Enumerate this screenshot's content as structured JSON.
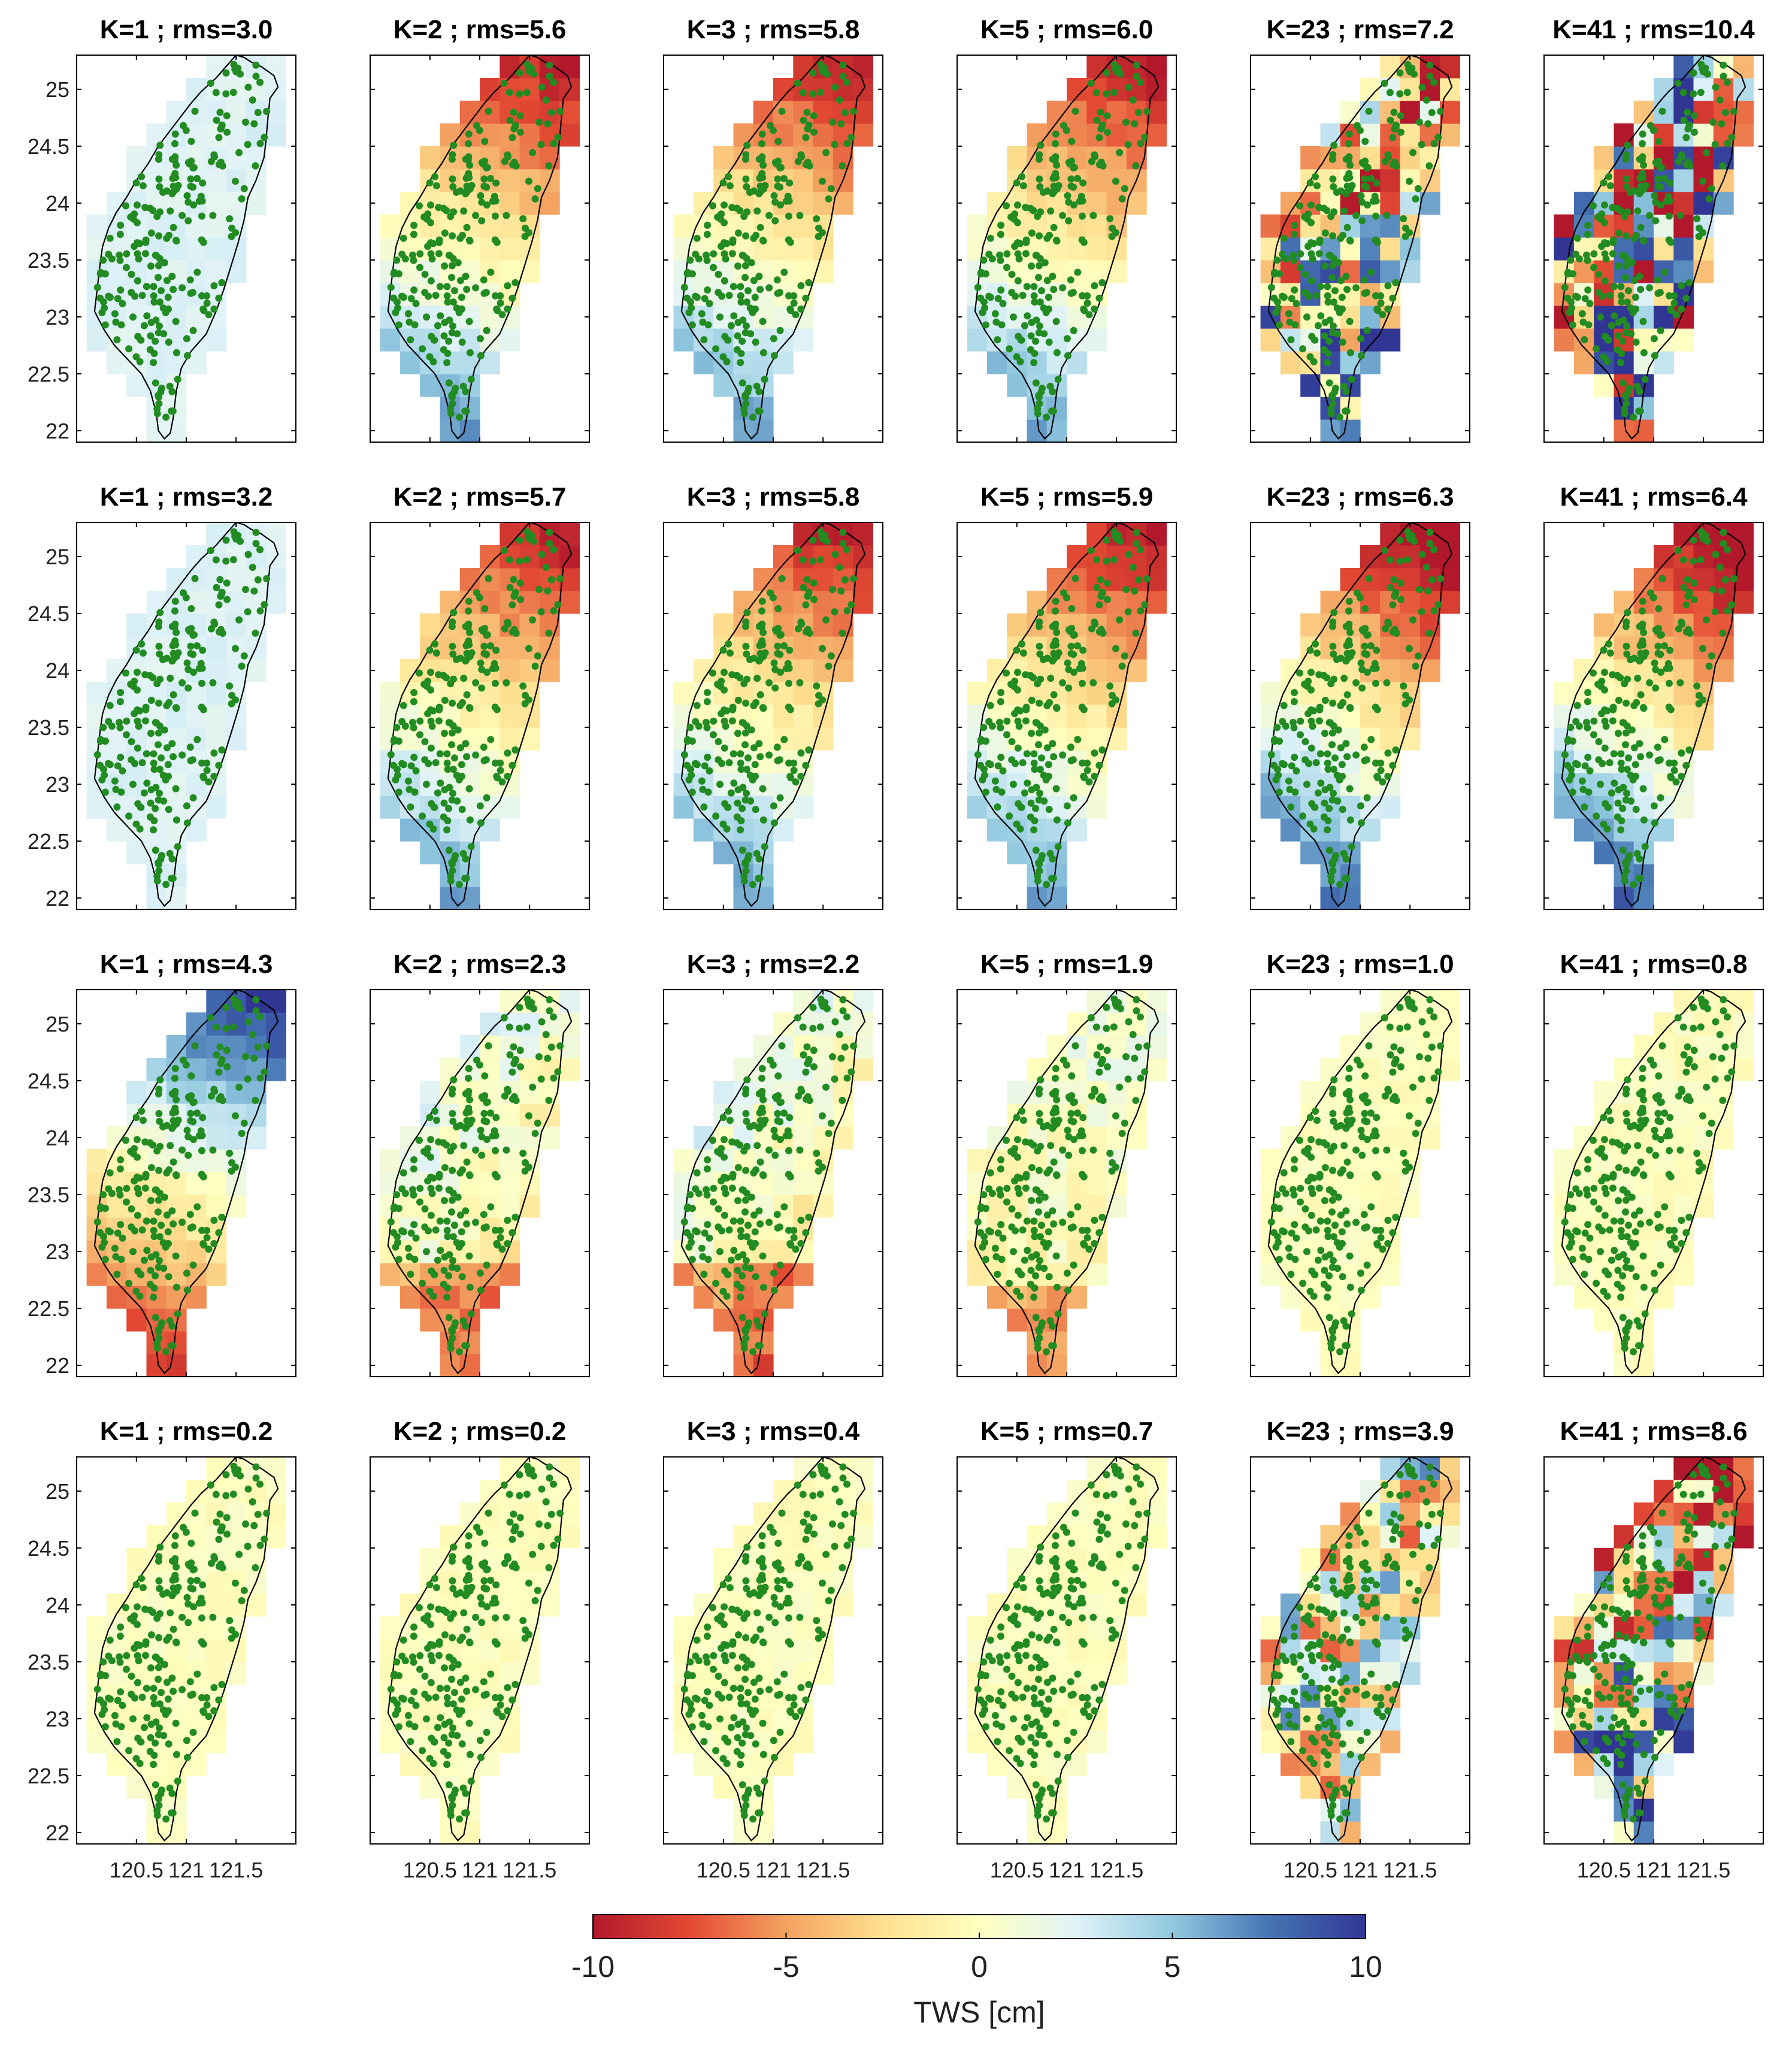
{
  "chart_data": {
    "type": "heatmap",
    "title": "",
    "layout": "4 rows x 6 columns of map panels",
    "panels": [
      {
        "row": 1,
        "col": 1,
        "title": "K=1 ; rms=3.0",
        "pattern": "uniform-positive",
        "K": 1,
        "rms": 3.0
      },
      {
        "row": 1,
        "col": 2,
        "title": "K=2 ; rms=5.6",
        "pattern": "north-negative-south-positive",
        "K": 2,
        "rms": 5.6
      },
      {
        "row": 1,
        "col": 3,
        "title": "K=3 ; rms=5.8",
        "pattern": "north-negative-south-positive",
        "K": 3,
        "rms": 5.8
      },
      {
        "row": 1,
        "col": 4,
        "title": "K=5 ; rms=6.0",
        "pattern": "north-negative-south-positive",
        "K": 5,
        "rms": 6.0
      },
      {
        "row": 1,
        "col": 5,
        "title": "K=23 ; rms=7.2",
        "pattern": "noisy-strong",
        "K": 23,
        "rms": 7.2
      },
      {
        "row": 1,
        "col": 6,
        "title": "K=41 ; rms=10.4",
        "pattern": "noisy-very-strong",
        "K": 41,
        "rms": 10.4
      },
      {
        "row": 2,
        "col": 1,
        "title": "K=1 ; rms=3.2",
        "pattern": "uniform-positive",
        "K": 1,
        "rms": 3.2
      },
      {
        "row": 2,
        "col": 2,
        "title": "K=2 ; rms=5.7",
        "pattern": "north-negative-south-positive",
        "K": 2,
        "rms": 5.7
      },
      {
        "row": 2,
        "col": 3,
        "title": "K=3 ; rms=5.8",
        "pattern": "north-negative-south-positive",
        "K": 3,
        "rms": 5.8
      },
      {
        "row": 2,
        "col": 4,
        "title": "K=5 ; rms=5.9",
        "pattern": "north-negative-south-positive",
        "K": 5,
        "rms": 5.9
      },
      {
        "row": 2,
        "col": 5,
        "title": "K=23 ; rms=6.3",
        "pattern": "north-negative-south-positive-strong",
        "K": 23,
        "rms": 6.3
      },
      {
        "row": 2,
        "col": 6,
        "title": "K=41 ; rms=6.4",
        "pattern": "north-negative-south-positive-strong",
        "K": 41,
        "rms": 6.4
      },
      {
        "row": 3,
        "col": 1,
        "title": "K=1 ; rms=4.3",
        "pattern": "north-positive-south-negative",
        "K": 1,
        "rms": 4.3
      },
      {
        "row": 3,
        "col": 2,
        "title": "K=2 ; rms=2.3",
        "pattern": "mixed-moderate",
        "K": 2,
        "rms": 2.3
      },
      {
        "row": 3,
        "col": 3,
        "title": "K=3 ; rms=2.2",
        "pattern": "mixed-moderate",
        "K": 3,
        "rms": 2.2
      },
      {
        "row": 3,
        "col": 4,
        "title": "K=5 ; rms=1.9",
        "pattern": "mixed-weak",
        "K": 5,
        "rms": 1.9
      },
      {
        "row": 3,
        "col": 5,
        "title": "K=23 ; rms=1.0",
        "pattern": "near-zero",
        "K": 23,
        "rms": 1.0
      },
      {
        "row": 3,
        "col": 6,
        "title": "K=41 ; rms=0.8",
        "pattern": "near-zero",
        "K": 41,
        "rms": 0.8
      },
      {
        "row": 4,
        "col": 1,
        "title": "K=1 ; rms=0.2",
        "pattern": "near-zero",
        "K": 1,
        "rms": 0.2
      },
      {
        "row": 4,
        "col": 2,
        "title": "K=2 ; rms=0.2",
        "pattern": "near-zero",
        "K": 2,
        "rms": 0.2
      },
      {
        "row": 4,
        "col": 3,
        "title": "K=3 ; rms=0.4",
        "pattern": "near-zero",
        "K": 3,
        "rms": 0.4
      },
      {
        "row": 4,
        "col": 4,
        "title": "K=5 ; rms=0.7",
        "pattern": "near-zero",
        "K": 5,
        "rms": 0.7
      },
      {
        "row": 4,
        "col": 5,
        "title": "K=23 ; rms=3.9",
        "pattern": "noisy-medium",
        "K": 23,
        "rms": 3.9
      },
      {
        "row": 4,
        "col": 6,
        "title": "K=41 ; rms=8.6",
        "pattern": "noisy-strong",
        "K": 41,
        "rms": 8.6
      }
    ],
    "y_tick_labels": [
      "25",
      "24.5",
      "24",
      "23.5",
      "23",
      "22.5",
      "22"
    ],
    "y_ticks": [
      25,
      24.5,
      24,
      23.5,
      23,
      22.5,
      22
    ],
    "x_tick_labels": [
      "120.5",
      "121",
      "121.5"
    ],
    "x_ticks": [
      120.5,
      121,
      121.5
    ],
    "xlim": [
      119.9,
      122.1
    ],
    "ylim": [
      21.9,
      25.3
    ],
    "colorbar": {
      "label": "TWS [cm]",
      "range": [
        -10,
        10
      ],
      "tick_labels": [
        "-10",
        "-5",
        "0",
        "5",
        "10"
      ],
      "ticks": [
        -10,
        -5,
        0,
        5,
        10
      ],
      "colormap": [
        "#b2182b",
        "#e34a33",
        "#f4a261",
        "#fee090",
        "#ffffbf",
        "#e0f3f8",
        "#91c9e0",
        "#4575b4",
        "#313695"
      ]
    },
    "station_color": "#228b22",
    "coastline_color": "#000000"
  }
}
